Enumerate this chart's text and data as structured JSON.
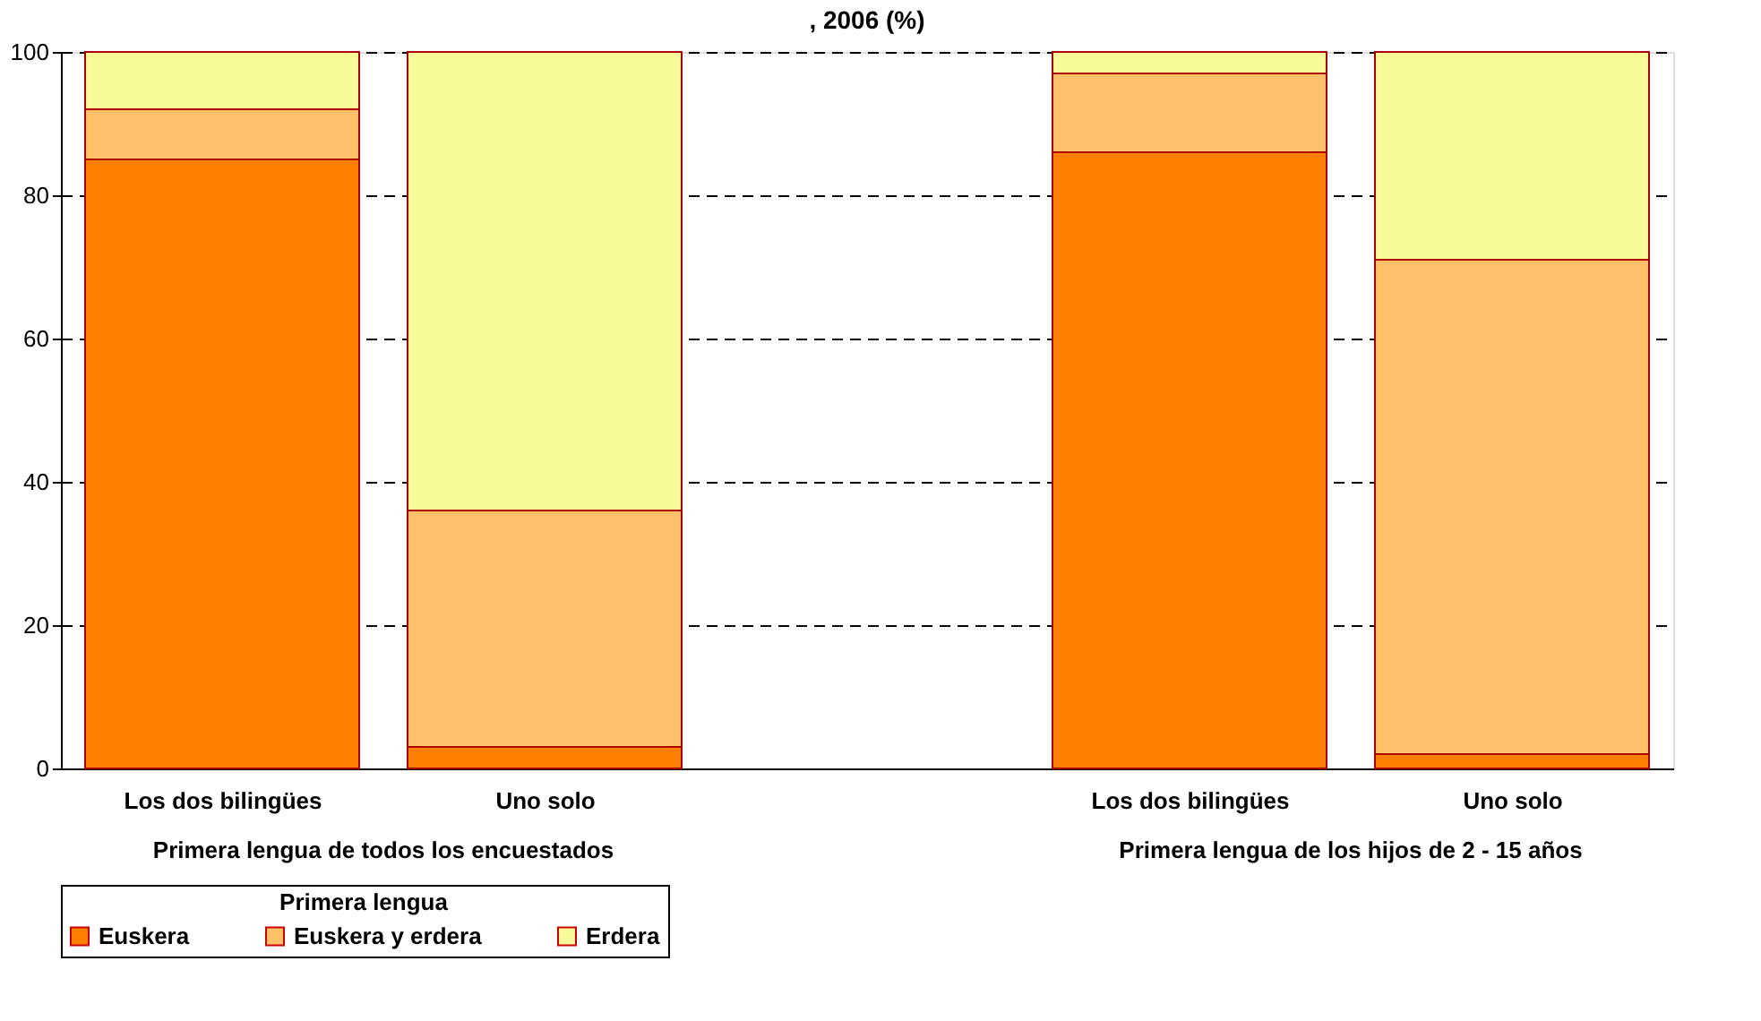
{
  "chart_data": {
    "type": "bar",
    "title": ", 2006 (%)",
    "stacked": true,
    "categories": [
      "Los dos bilingües",
      "Uno solo",
      null,
      "Los dos bilingües",
      "Uno solo"
    ],
    "series": [
      {
        "name": "Euskera",
        "color": "#ff8000",
        "values": [
          85,
          3,
          null,
          86,
          2
        ]
      },
      {
        "name": "Euskera y erdera",
        "color": "#ffc06a",
        "values": [
          7,
          33,
          null,
          11,
          69
        ]
      },
      {
        "name": "Erdera",
        "color": "#f8fa9a",
        "values": [
          8,
          64,
          null,
          3,
          29
        ]
      }
    ],
    "annotations": [
      "Primera lengua de todos los encuestados",
      "Primera lengua de los hijos de 2 - 15 años"
    ],
    "legend_title": "Primera lengua",
    "legend": "bottom",
    "ylim": [
      0,
      100
    ],
    "yticks": [
      0,
      20,
      40,
      60,
      80,
      100
    ],
    "grid": "y"
  }
}
